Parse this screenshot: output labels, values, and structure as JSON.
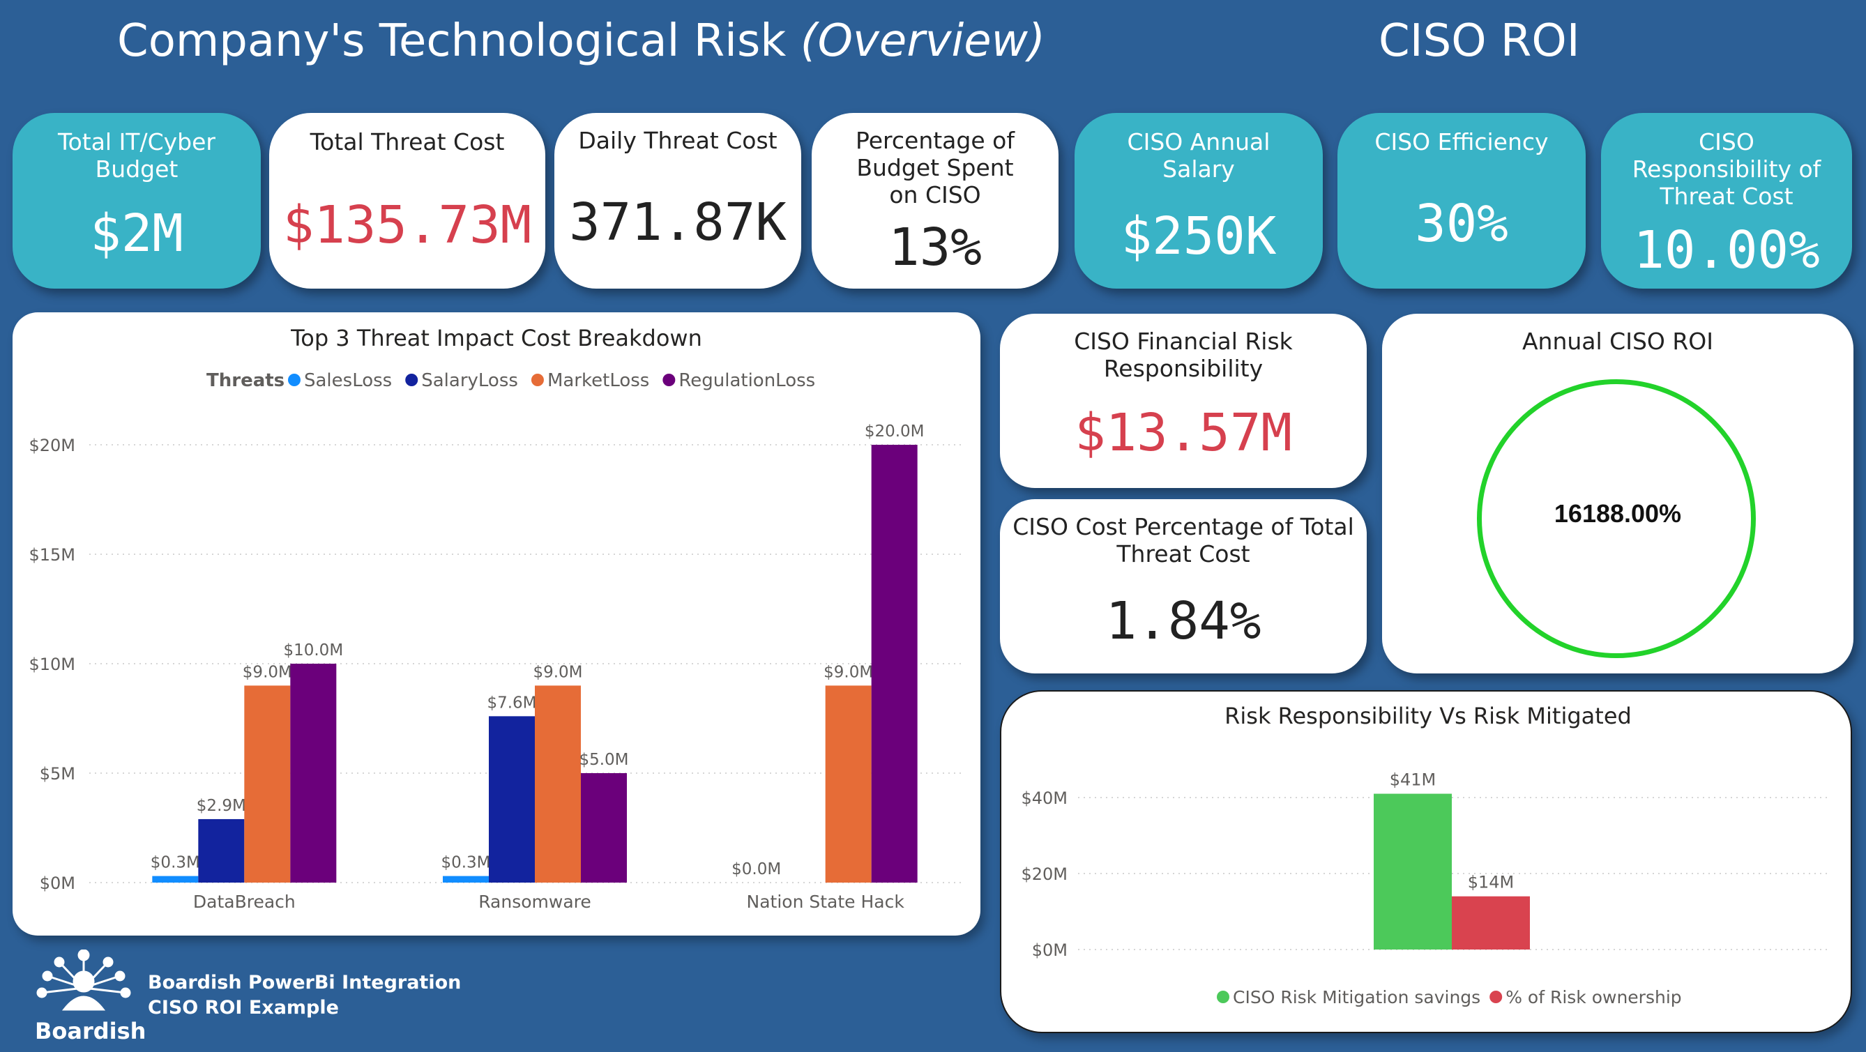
{
  "header": {
    "title_main": "Company's Technological Risk ",
    "title_emphasis": "(Overview)",
    "ciso_title": "CISO ROI"
  },
  "cards": {
    "budget": {
      "label": "Total IT/Cyber Budget",
      "value": "$2M"
    },
    "total_threat": {
      "label": "Total Threat Cost",
      "value": "$135.73M"
    },
    "daily_threat": {
      "label": "Daily Threat Cost",
      "value": "371.87K"
    },
    "pct_budget": {
      "label": "Percentage of Budget Spent on CISO",
      "value": "13%"
    },
    "salary": {
      "label": "CISO Annual Salary",
      "value": "$250K"
    },
    "efficiency": {
      "label": "CISO Efficiency",
      "value": "30%"
    },
    "responsibility": {
      "label": "CISO Responsibility of Threat Cost",
      "value": "10.00%"
    },
    "financial_risk": {
      "label": "CISO Financial Risk Responsibility",
      "value": "$13.57M"
    },
    "cost_pct": {
      "label": "CISO Cost Percentage of Total Threat Cost",
      "value": "1.84%"
    },
    "roi": {
      "label": "Annual CISO ROI",
      "value": "16188.00%"
    }
  },
  "colors": {
    "background": "#2c5f96",
    "teal": "#39b3c6",
    "red_value": "#d6404e",
    "ring": "#22d22a",
    "sales": "#118dff",
    "salary": "#12239e",
    "market": "#e66c37",
    "regulation": "#6b007b",
    "mitigation": "#4cc95a",
    "ownership": "#d9434f"
  },
  "chart_data": [
    {
      "type": "bar",
      "title": "Top 3 Threat Impact Cost Breakdown",
      "legend_title": "Threats",
      "legend_position": "top-left",
      "categories": [
        "DataBreach",
        "Ransomware",
        "Nation State Hack"
      ],
      "series": [
        {
          "name": "SalesLoss",
          "values": [
            0.3,
            0.3,
            0.0
          ],
          "labels": [
            "$0.3M",
            "$0.3M",
            "$0.0M"
          ]
        },
        {
          "name": "SalaryLoss",
          "values": [
            2.9,
            7.6,
            0.0
          ],
          "labels": [
            "$2.9M",
            "$7.6M",
            ""
          ]
        },
        {
          "name": "MarketLoss",
          "values": [
            9.0,
            9.0,
            9.0
          ],
          "labels": [
            "$9.0M",
            "$9.0M",
            "$9.0M"
          ]
        },
        {
          "name": "RegulationLoss",
          "values": [
            10.0,
            5.0,
            20.0
          ],
          "labels": [
            "$10.0M",
            "$5.0M",
            "$20.0M"
          ]
        }
      ],
      "y_ticks": [
        "$0M",
        "$5M",
        "$10M",
        "$15M",
        "$20M"
      ],
      "y_tick_values": [
        0,
        5,
        10,
        15,
        20
      ],
      "ylim": [
        0,
        20
      ],
      "grid": true
    },
    {
      "type": "bar",
      "title": "Risk Responsibility Vs Risk Mitigated",
      "legend_position": "bottom-center",
      "series": [
        {
          "name": "CISO Risk Mitigation savings",
          "value": 41,
          "label": "$41M"
        },
        {
          "name": "% of Risk ownership",
          "value": 14,
          "label": "$14M"
        }
      ],
      "y_ticks": [
        "$0M",
        "$20M",
        "$40M"
      ],
      "y_tick_values": [
        0,
        20,
        40
      ],
      "ylim": [
        0,
        41
      ],
      "grid": true
    }
  ],
  "branding": {
    "logo_text": "Boardish",
    "line1": "Boardish PowerBi Integration",
    "line2": "CISO ROI Example"
  }
}
